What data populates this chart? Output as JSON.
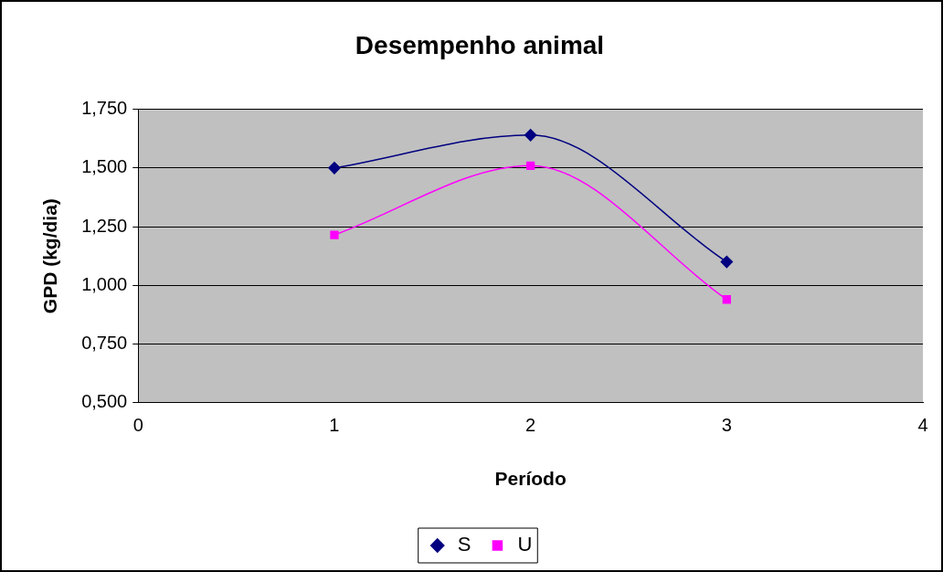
{
  "chart_data": {
    "type": "line",
    "title": "Desempenho animal",
    "xlabel": "Período",
    "ylabel": "GPD (kg/dia)",
    "x": [
      1,
      2,
      3
    ],
    "series": [
      {
        "name": "S",
        "color": "#000080",
        "marker": "diamond",
        "values": [
          1.5,
          1.64,
          1.1
        ]
      },
      {
        "name": "U",
        "color": "#ff00ff",
        "marker": "square",
        "values": [
          1.215,
          1.51,
          0.94
        ]
      }
    ],
    "xlim": [
      0,
      4
    ],
    "xticks": [
      0,
      1,
      2,
      3,
      4
    ],
    "ylim": [
      0.5,
      1.75
    ],
    "yticks": [
      {
        "value": 0.5,
        "label": "0,500"
      },
      {
        "value": 0.75,
        "label": "0,750"
      },
      {
        "value": 1,
        "label": "1,000"
      },
      {
        "value": 1.25,
        "label": "1,250"
      },
      {
        "value": 1.5,
        "label": "1,500"
      },
      {
        "value": 1.75,
        "label": "1,750"
      }
    ],
    "grid": "y",
    "legend": "bottom",
    "line_style": "solid"
  }
}
